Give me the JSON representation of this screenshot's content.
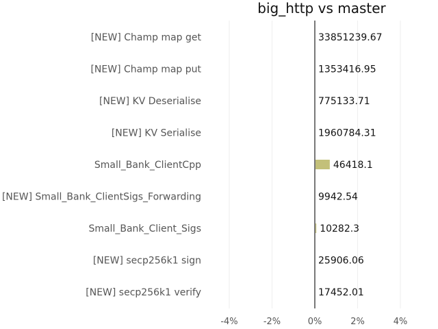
{
  "chart_data": {
    "type": "bar",
    "orientation": "horizontal",
    "title": "big_http vs master",
    "xlabel": "",
    "ylabel": "",
    "xlim": [
      -4.8,
      4.8
    ],
    "x_ticks": [
      -4,
      -2,
      0,
      2,
      4
    ],
    "x_tick_labels": [
      "-4%",
      "-2%",
      "0%",
      "2%",
      "4%"
    ],
    "grid": true,
    "bar_color": "#c3c079",
    "zero_line_color": "#777777",
    "grid_color": "#eeeeee",
    "categories": [
      "[NEW] Champ map get",
      "[NEW] Champ map put",
      "[NEW] KV Deserialise",
      "[NEW] KV Serialise",
      "Small_Bank_ClientCpp",
      "[NEW] Small_Bank_ClientSigs_Forwarding",
      "Small_Bank_Client_Sigs",
      "[NEW] secp256k1 sign",
      "[NEW] secp256k1 verify"
    ],
    "values": [
      0,
      0,
      0,
      0,
      0.7,
      0,
      0.07,
      0,
      0
    ],
    "value_labels": [
      "33851239.67",
      "1353416.95",
      "775133.71",
      "1960784.31",
      "46418.1",
      "9942.54",
      "10282.3",
      "25906.06",
      "17452.01"
    ]
  }
}
